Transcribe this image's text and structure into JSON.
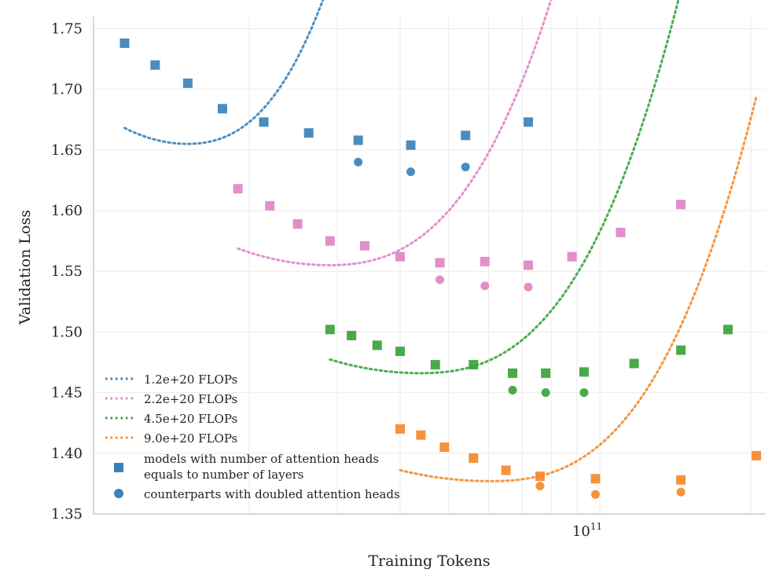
{
  "chart_data": {
    "type": "scatter",
    "xscale": "log",
    "xlabel": "Training Tokens",
    "ylabel": "Validation Loss",
    "xlim": [
      9800000000.0,
      214000000000.0
    ],
    "ylim": [
      1.35,
      1.76
    ],
    "yticks": [
      1.35,
      1.4,
      1.45,
      1.5,
      1.55,
      1.6,
      1.65,
      1.7,
      1.75
    ],
    "ytick_labels": [
      "1.35",
      "1.40",
      "1.45",
      "1.50",
      "1.55",
      "1.60",
      "1.65",
      "1.70",
      "1.75"
    ],
    "xtick_major": {
      "value": 100000000000.0,
      "base": "10",
      "exponent": "11"
    },
    "xtick_minor": [
      20000000000.0,
      30000000000.0,
      40000000000.0,
      50000000000.0,
      60000000000.0,
      70000000000.0,
      80000000000.0,
      90000000000.0,
      200000000000.0
    ],
    "grid": true,
    "series": [
      {
        "name": "1.2e+20 FLOPs",
        "color": "#3b82b8",
        "squares": [
          {
            "x": 11300000000.0,
            "y": 1.738
          },
          {
            "x": 13000000000.0,
            "y": 1.72
          },
          {
            "x": 15100000000.0,
            "y": 1.705
          },
          {
            "x": 17700000000.0,
            "y": 1.684
          },
          {
            "x": 21400000000.0,
            "y": 1.673
          },
          {
            "x": 26300000000.0,
            "y": 1.664
          },
          {
            "x": 33000000000.0,
            "y": 1.658
          },
          {
            "x": 42000000000.0,
            "y": 1.654
          },
          {
            "x": 54000000000.0,
            "y": 1.662
          },
          {
            "x": 72000000000.0,
            "y": 1.673
          }
        ],
        "circles": [
          {
            "x": 33000000000.0,
            "y": 1.64
          },
          {
            "x": 42000000000.0,
            "y": 1.632
          },
          {
            "x": 54000000000.0,
            "y": 1.636
          }
        ],
        "fit": {
          "a": 0.8287,
          "b": 3.0,
          "c": 1.655
        }
      },
      {
        "name": "2.2e+20 FLOPs",
        "color": "#e184c6",
        "squares": [
          {
            "x": 19000000000.0,
            "y": 1.618
          },
          {
            "x": 22000000000.0,
            "y": 1.604
          },
          {
            "x": 25000000000.0,
            "y": 1.589
          },
          {
            "x": 29000000000.0,
            "y": 1.575
          },
          {
            "x": 34000000000.0,
            "y": 1.571
          },
          {
            "x": 40000000000.0,
            "y": 1.562
          },
          {
            "x": 48000000000.0,
            "y": 1.557
          },
          {
            "x": 59000000000.0,
            "y": 1.558
          },
          {
            "x": 72000000000.0,
            "y": 1.555
          },
          {
            "x": 88000000000.0,
            "y": 1.562
          },
          {
            "x": 110000000000.0,
            "y": 1.582
          },
          {
            "x": 145000000000.0,
            "y": 1.605
          }
        ],
        "circles": [
          {
            "x": 48000000000.0,
            "y": 1.543
          },
          {
            "x": 59000000000.0,
            "y": 1.538
          },
          {
            "x": 72000000000.0,
            "y": 1.537
          }
        ],
        "fit": {
          "a": 0.4143,
          "b": 1.6,
          "c": 1.555
        }
      },
      {
        "name": "4.5e+20 FLOPs",
        "color": "#3aa33a",
        "squares": [
          {
            "x": 29000000000.0,
            "y": 1.502
          },
          {
            "x": 32000000000.0,
            "y": 1.497
          },
          {
            "x": 36000000000.0,
            "y": 1.489
          },
          {
            "x": 40000000000.0,
            "y": 1.484
          },
          {
            "x": 47000000000.0,
            "y": 1.473
          },
          {
            "x": 56000000000.0,
            "y": 1.473
          },
          {
            "x": 67000000000.0,
            "y": 1.466
          },
          {
            "x": 78000000000.0,
            "y": 1.466
          },
          {
            "x": 93000000000.0,
            "y": 1.467
          },
          {
            "x": 117000000000.0,
            "y": 1.474
          },
          {
            "x": 145000000000.0,
            "y": 1.485
          },
          {
            "x": 180000000000.0,
            "y": 1.502
          }
        ],
        "circles": [
          {
            "x": 67000000000.0,
            "y": 1.452
          },
          {
            "x": 78000000000.0,
            "y": 1.45
          },
          {
            "x": 93000000000.0,
            "y": 1.45
          }
        ],
        "fit": {
          "a": 0.3453,
          "b": 1.6,
          "c": 1.466
        }
      },
      {
        "name": "9.0e+20 FLOPs",
        "color": "#f5892b",
        "squares": [
          {
            "x": 40000000000.0,
            "y": 1.42
          },
          {
            "x": 44000000000.0,
            "y": 1.415
          },
          {
            "x": 49000000000.0,
            "y": 1.405
          },
          {
            "x": 56000000000.0,
            "y": 1.396
          },
          {
            "x": 65000000000.0,
            "y": 1.386
          },
          {
            "x": 76000000000.0,
            "y": 1.381
          },
          {
            "x": 98000000000.0,
            "y": 1.379
          },
          {
            "x": 145000000000.0,
            "y": 1.378
          },
          {
            "x": 205000000000.0,
            "y": 1.398
          }
        ],
        "circles": [
          {
            "x": 76000000000.0,
            "y": 1.373
          },
          {
            "x": 98000000000.0,
            "y": 1.366
          },
          {
            "x": 145000000000.0,
            "y": 1.368
          }
        ],
        "fit": {
          "a": 0.2802,
          "b": 1.6,
          "c": 1.377
        }
      }
    ],
    "legend": {
      "placement": "lower-left",
      "square_label_line1": "models with number of attention heads",
      "square_label_line2": "equals to number of layers",
      "circle_label": "counterparts with doubled attention heads",
      "marker_color": "#3b82b8"
    }
  }
}
